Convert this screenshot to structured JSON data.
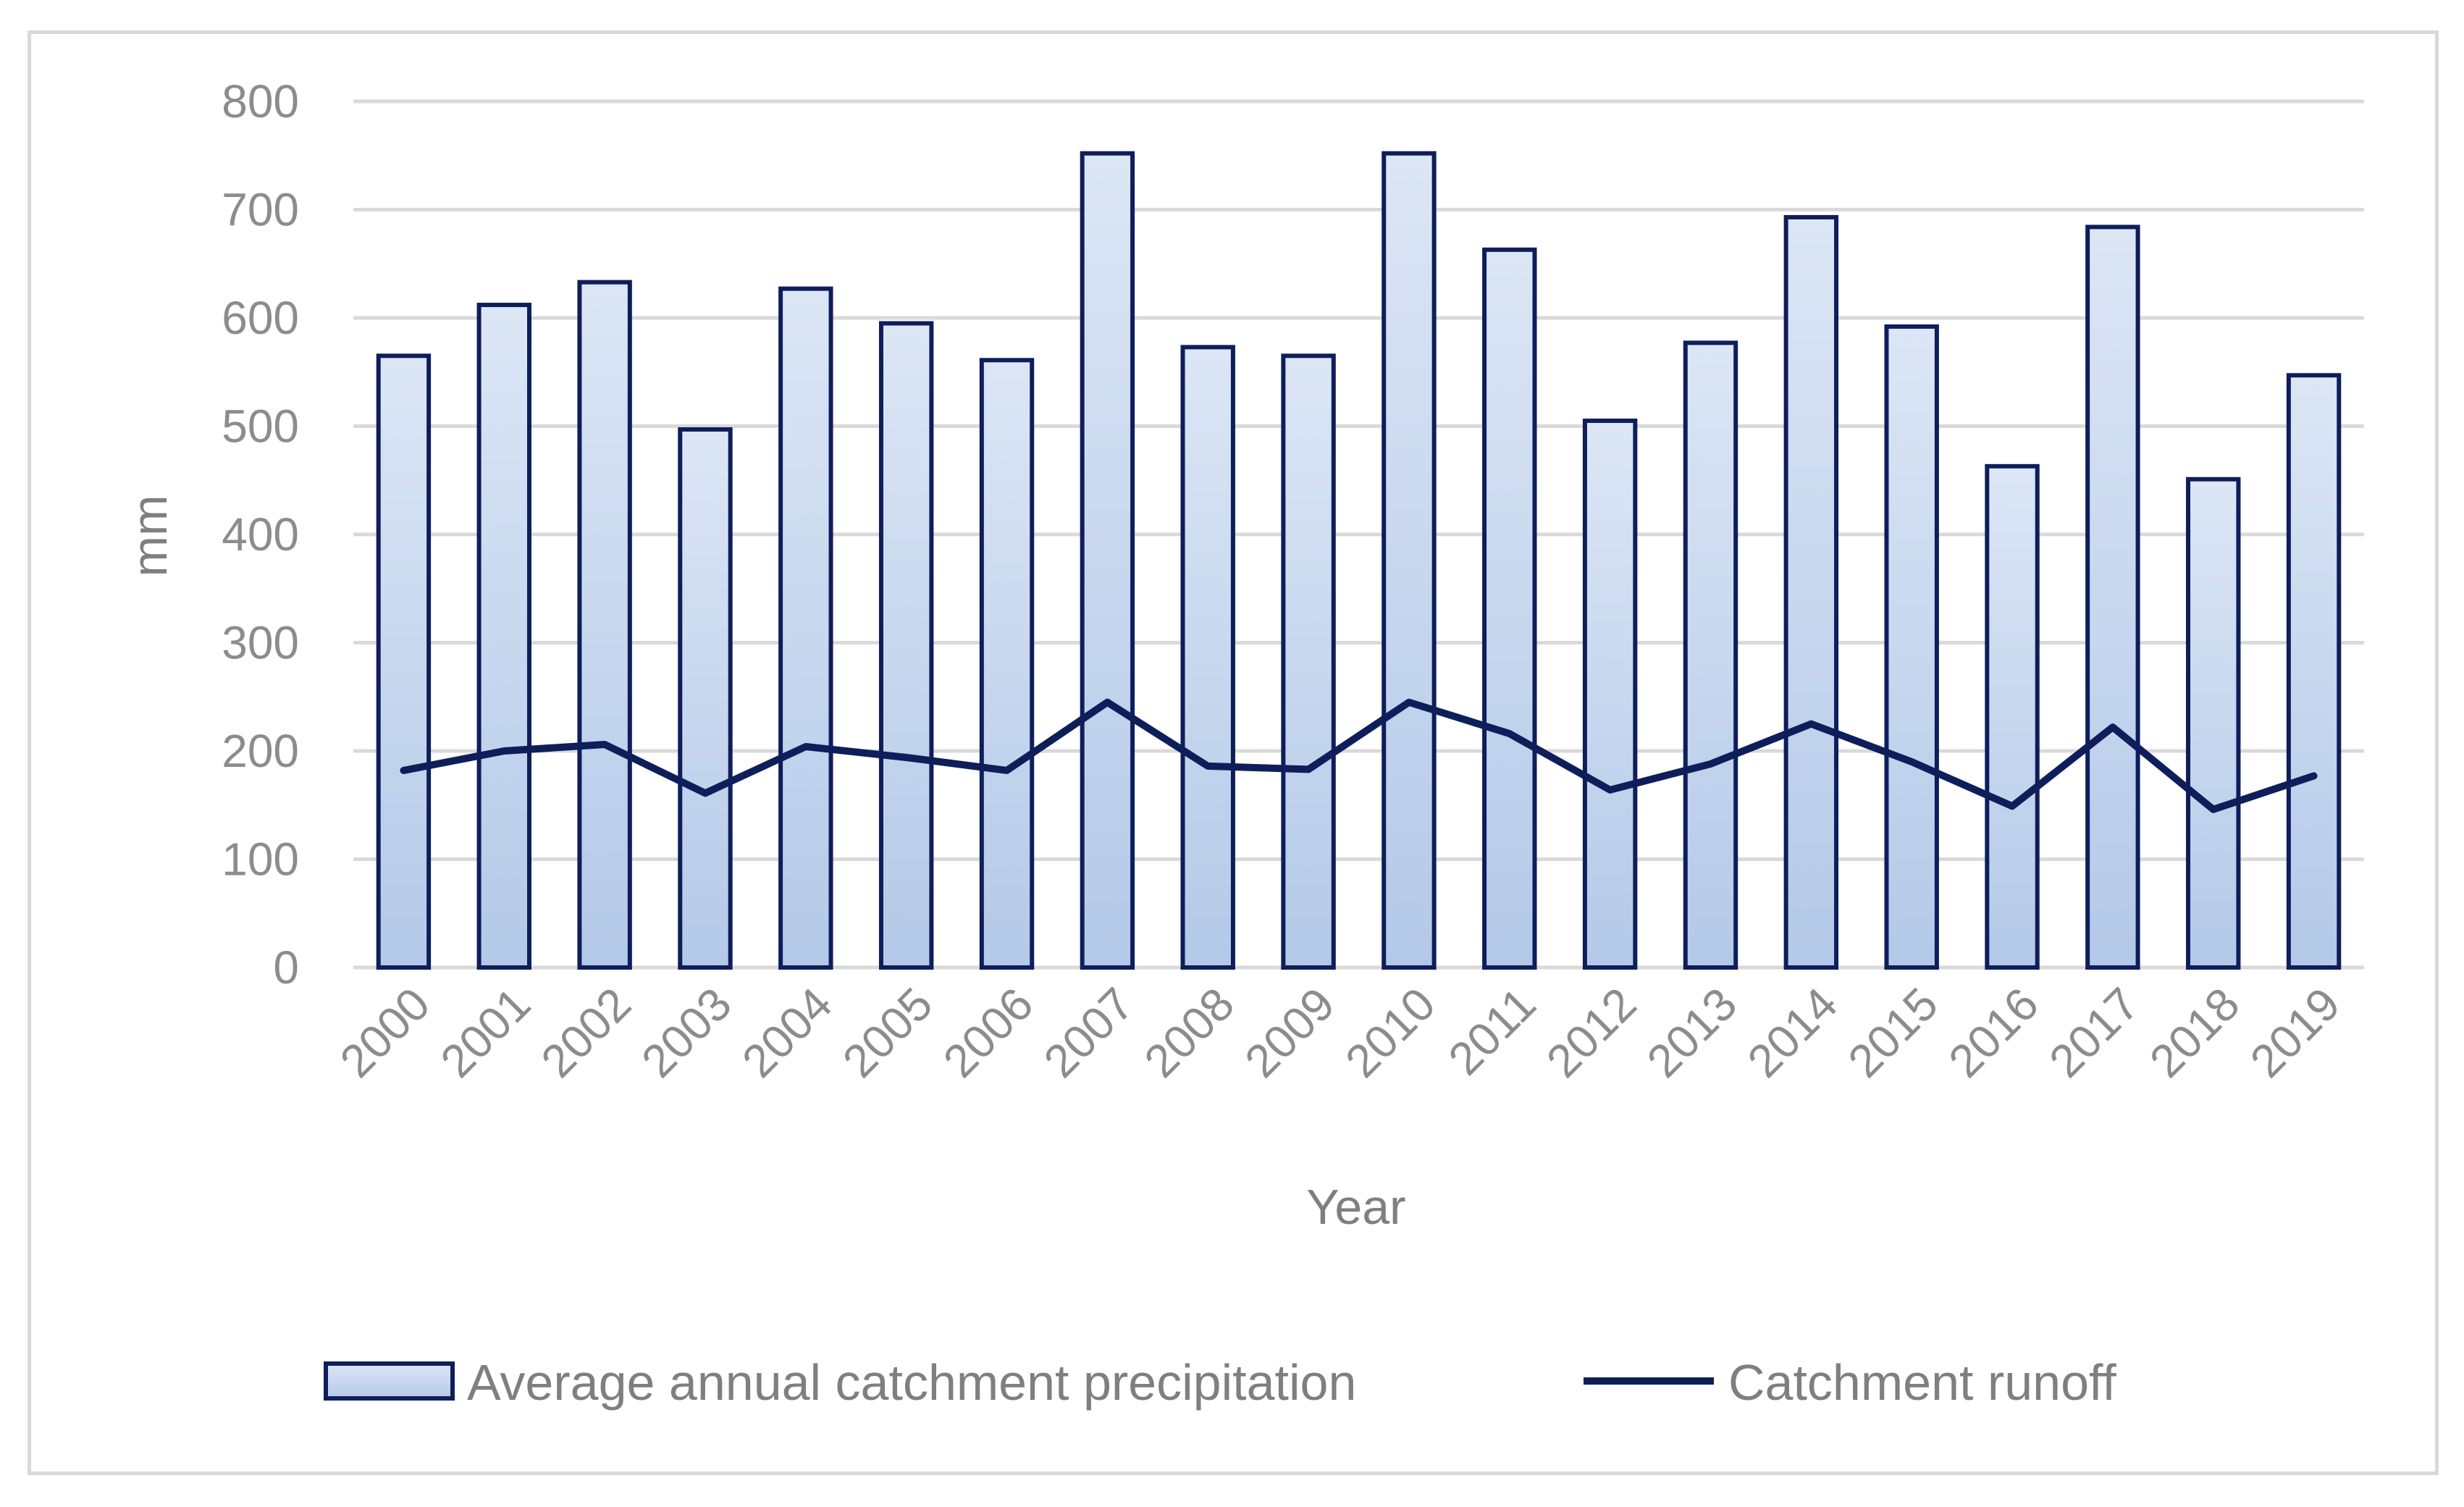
{
  "chart_data": {
    "type": "bar",
    "title": "",
    "xlabel": "Year",
    "ylabel": "mm",
    "ylim": [
      0,
      800
    ],
    "yticks": [
      0,
      100,
      200,
      300,
      400,
      500,
      600,
      700,
      800
    ],
    "grid": true,
    "legend_position": "bottom",
    "categories": [
      "2000",
      "2001",
      "2002",
      "2003",
      "2004",
      "2005",
      "2006",
      "2007",
      "2008",
      "2009",
      "2010",
      "2011",
      "2012",
      "2013",
      "2014",
      "2015",
      "2016",
      "2017",
      "2018",
      "2019"
    ],
    "series": [
      {
        "name": "Average annual catchment precipitation",
        "kind": "bar",
        "values": [
          565,
          612,
          633,
          497,
          627,
          595,
          561,
          752,
          573,
          565,
          752,
          663,
          505,
          577,
          693,
          592,
          463,
          684,
          451,
          547
        ]
      },
      {
        "name": "Catchment runoff",
        "kind": "line",
        "values": [
          182,
          200,
          206,
          161,
          204,
          194,
          182,
          245,
          186,
          183,
          245,
          216,
          164,
          188,
          225,
          190,
          149,
          222,
          146,
          177
        ]
      }
    ],
    "colors": {
      "bar_fill_top": "#dce6f5",
      "bar_fill_bottom": "#b4c9e8",
      "bar_stroke": "#0e1e5b",
      "line": "#0e1e5b",
      "grid": "#d9d9d9",
      "text": "#8c8c8c"
    }
  }
}
